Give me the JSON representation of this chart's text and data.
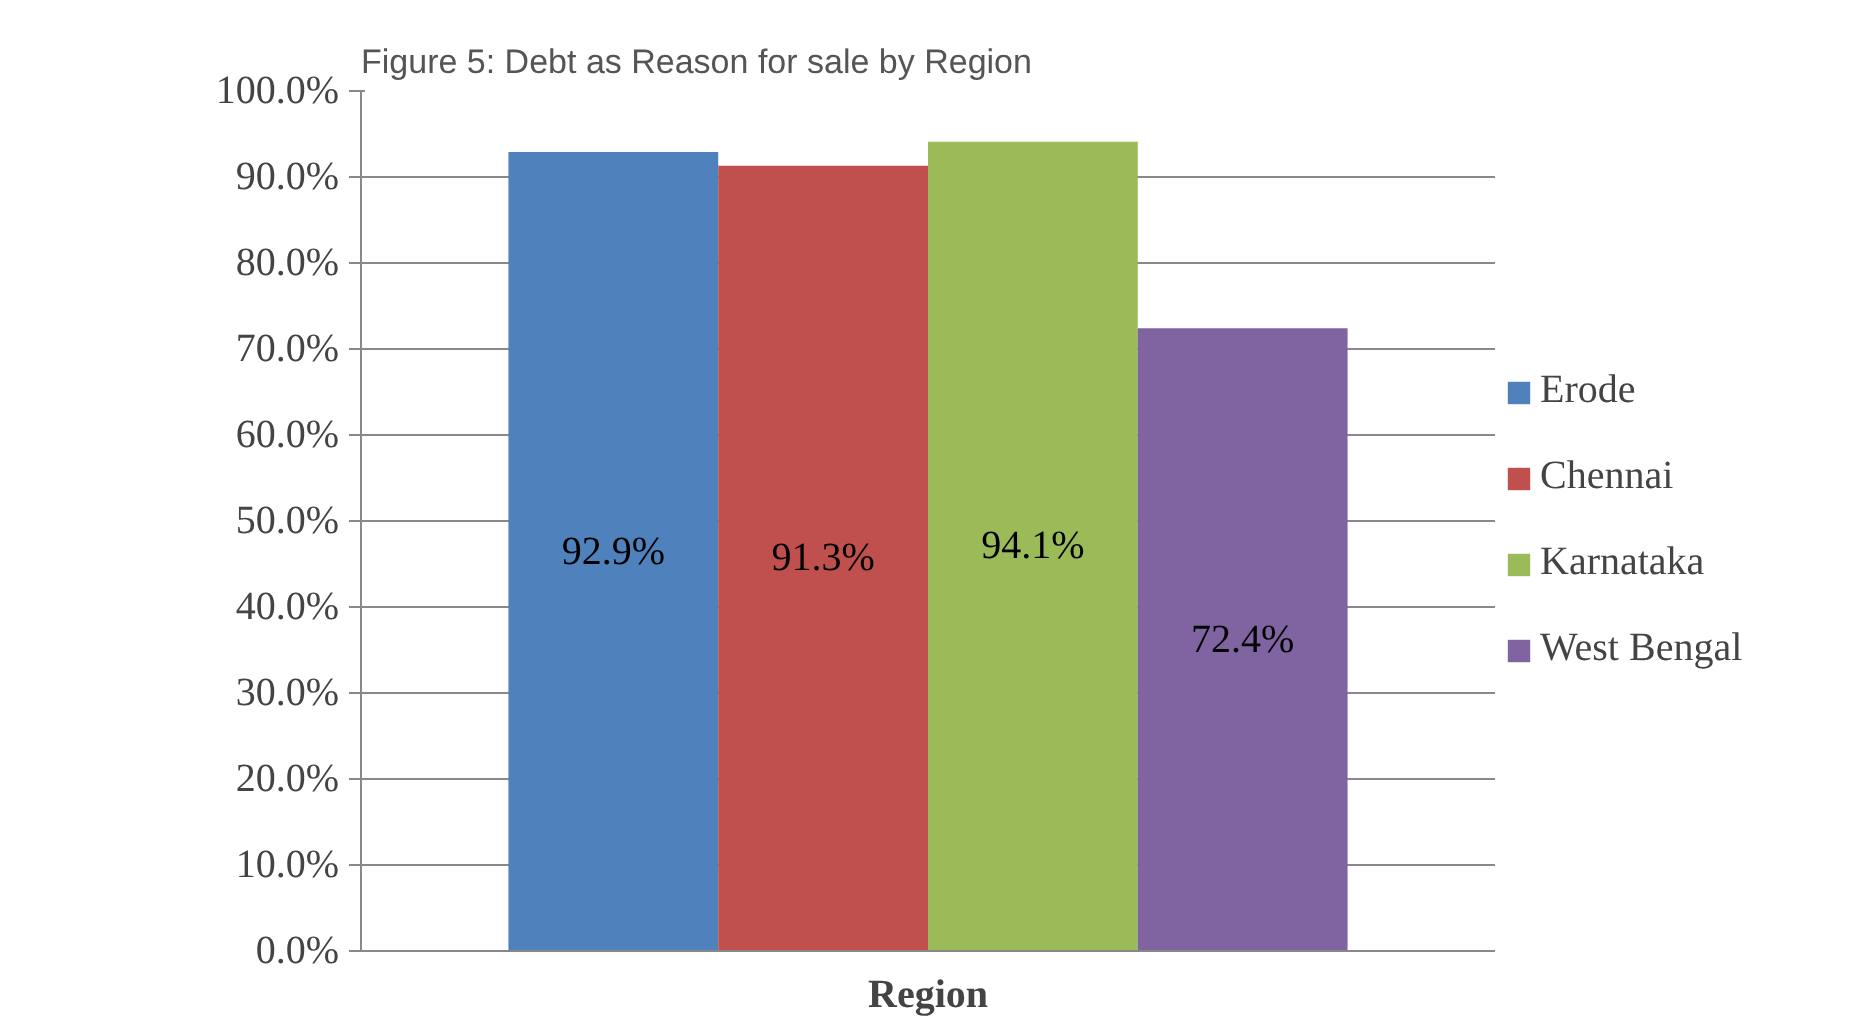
{
  "chart_data": {
    "type": "bar",
    "title": "Figure 5: Debt as Reason for sale by Region",
    "categories": [
      "Region"
    ],
    "series": [
      {
        "name": "Erode",
        "color": "#4f81bd",
        "values": [
          92.9
        ],
        "value_labels": [
          "92.9%"
        ]
      },
      {
        "name": "Chennai",
        "color": "#c0504d",
        "values": [
          91.3
        ],
        "value_labels": [
          "91.3%"
        ]
      },
      {
        "name": "Karnataka",
        "color": "#9bbb59",
        "values": [
          94.1
        ],
        "value_labels": [
          "94.1%"
        ]
      },
      {
        "name": "West Bengal",
        "color": "#8064a2",
        "values": [
          72.4
        ],
        "value_labels": [
          "72.4%"
        ]
      }
    ],
    "ylim": [
      0,
      100
    ],
    "yticks": [
      {
        "value": 0,
        "label": "0.0%"
      },
      {
        "value": 10,
        "label": "10.0%"
      },
      {
        "value": 20,
        "label": "20.0%"
      },
      {
        "value": 30,
        "label": "30.0%"
      },
      {
        "value": 40,
        "label": "40.0%"
      },
      {
        "value": 50,
        "label": "50.0%"
      },
      {
        "value": 60,
        "label": "60.0%"
      },
      {
        "value": 70,
        "label": "70.0%"
      },
      {
        "value": 80,
        "label": "80.0%"
      },
      {
        "value": 90,
        "label": "90.0%"
      },
      {
        "value": 100,
        "label": "100.0%"
      }
    ],
    "grid": "y",
    "legend": "right"
  }
}
